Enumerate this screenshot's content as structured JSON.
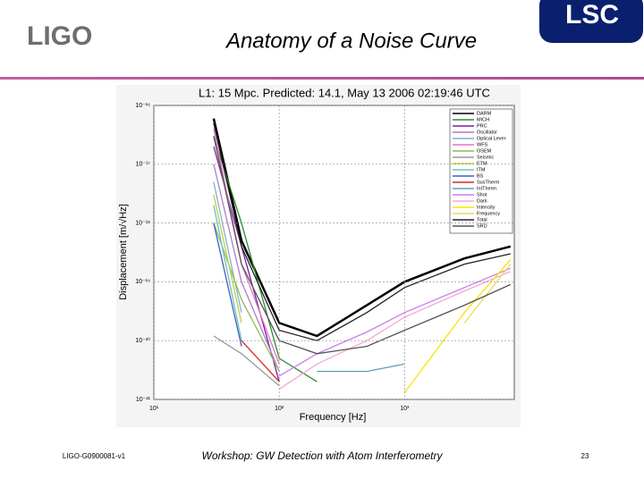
{
  "header": {
    "logo_left": "LIGO",
    "title": "Anatomy of a Noise Curve",
    "logo_right": "LSC"
  },
  "chart_data": {
    "type": "line",
    "title": "L1: 15 Mpc. Predicted: 14.1, May 13 2006 02:19:46 UTC",
    "x_label": "Frequency [Hz]",
    "y_label": "Displacement [m/√Hz]",
    "log_x": true,
    "log_y": true,
    "grid": true,
    "legend": "top-right",
    "xlim": [
      10,
      7500
    ],
    "ylim": [
      1e-21,
      1e-16
    ],
    "xticks": [
      {
        "value": 10,
        "label": "10¹"
      },
      {
        "value": 100,
        "label": "10²"
      },
      {
        "value": 1000,
        "label": "10³"
      }
    ],
    "yticks": [
      {
        "value": 1e-16,
        "label": "10⁻¹⁶"
      },
      {
        "value": 1e-17,
        "label": "10⁻¹⁷"
      },
      {
        "value": 1e-18,
        "label": "10⁻¹⁸"
      },
      {
        "value": 1e-19,
        "label": "10⁻¹⁹"
      },
      {
        "value": 1e-20,
        "label": "10⁻²⁰"
      },
      {
        "value": 1e-21,
        "label": "10⁻²¹"
      }
    ],
    "x": [
      30,
      50,
      100,
      200,
      500,
      1000,
      3000,
      7000
    ],
    "series": [
      {
        "name": "DARM",
        "color": "#000000",
        "values": [
          6e-17,
          5e-19,
          2e-20,
          1.2e-20,
          4e-20,
          1e-19,
          2.5e-19,
          4e-19
        ]
      },
      {
        "name": "MICH",
        "color": "#2e8b2e",
        "values": [
          3e-17,
          1e-18,
          5e-21,
          2e-21,
          null,
          null,
          null,
          null
        ]
      },
      {
        "name": "PRC",
        "color": "#7a1fa2",
        "values": [
          2e-17,
          4e-19,
          2e-21,
          null,
          null,
          null,
          null,
          null
        ]
      },
      {
        "name": "Oscillator",
        "color": "#b07cc6",
        "values": [
          1e-17,
          1e-19,
          3e-21,
          null,
          null,
          null,
          null,
          null
        ]
      },
      {
        "name": "Optical Lever",
        "color": "#7fb3d5",
        "values": [
          5e-18,
          3e-20,
          null,
          null,
          null,
          null,
          null,
          null
        ]
      },
      {
        "name": "WFS",
        "color": "#e377c2",
        "values": [
          4e-17,
          2e-19,
          4e-21,
          null,
          null,
          null,
          null,
          null
        ]
      },
      {
        "name": "OSEM",
        "color": "#8fbc5a",
        "values": [
          1e-18,
          5e-20,
          3e-21,
          null,
          null,
          null,
          null,
          null
        ]
      },
      {
        "name": "Seismic",
        "color": "#999999",
        "values": [
          1.2e-20,
          6e-21,
          1.7e-21,
          null,
          null,
          null,
          null,
          null
        ]
      },
      {
        "name": "ETM",
        "color": "#c8c84a",
        "values": [
          3e-18,
          2e-20,
          null,
          null,
          null,
          null,
          null,
          null
        ]
      },
      {
        "name": "ITM",
        "color": "#66c2c2",
        "values": [
          2e-18,
          1e-20,
          null,
          null,
          null,
          null,
          null,
          null
        ]
      },
      {
        "name": "BS",
        "color": "#3f5fbf",
        "values": [
          1e-18,
          8e-21,
          null,
          null,
          null,
          null,
          null,
          null
        ]
      },
      {
        "name": "SusTherm",
        "color": "#d62728",
        "values": [
          null,
          1e-20,
          2e-21,
          null,
          null,
          null,
          null,
          null
        ]
      },
      {
        "name": "IntTherm",
        "color": "#5aa0b4",
        "values": [
          null,
          null,
          null,
          3e-21,
          3e-21,
          4e-21,
          null,
          null
        ]
      },
      {
        "name": "Shot",
        "color": "#c77ee8",
        "values": [
          null,
          null,
          2.5e-21,
          6e-21,
          1.4e-20,
          3e-20,
          8e-20,
          1.7e-19
        ]
      },
      {
        "name": "Dark",
        "color": "#f0a8d8",
        "values": [
          null,
          null,
          1.5e-21,
          4e-21,
          1e-20,
          2.5e-20,
          7e-20,
          1.5e-19
        ]
      },
      {
        "name": "Intensity",
        "color": "#f5e600",
        "values": [
          null,
          null,
          null,
          null,
          null,
          1.3e-21,
          3e-20,
          2.4e-19
        ]
      },
      {
        "name": "Frequency",
        "color": "#e8d86a",
        "values": [
          null,
          null,
          null,
          null,
          null,
          null,
          2e-20,
          2e-19
        ]
      },
      {
        "name": "Total",
        "color": "#222222",
        "values": [
          5e-17,
          4e-19,
          1.5e-20,
          1e-20,
          3e-20,
          8e-20,
          2e-19,
          3e-19
        ]
      },
      {
        "name": "SRD",
        "color": "#555555",
        "values": [
          3e-17,
          2e-19,
          1e-20,
          6e-21,
          8e-21,
          1.5e-20,
          4e-20,
          9e-20
        ]
      }
    ]
  },
  "footer": {
    "doc_id": "LIGO-G0900081-v1",
    "event": "Workshop: GW Detection with Atom Interferometry",
    "page": 23
  }
}
